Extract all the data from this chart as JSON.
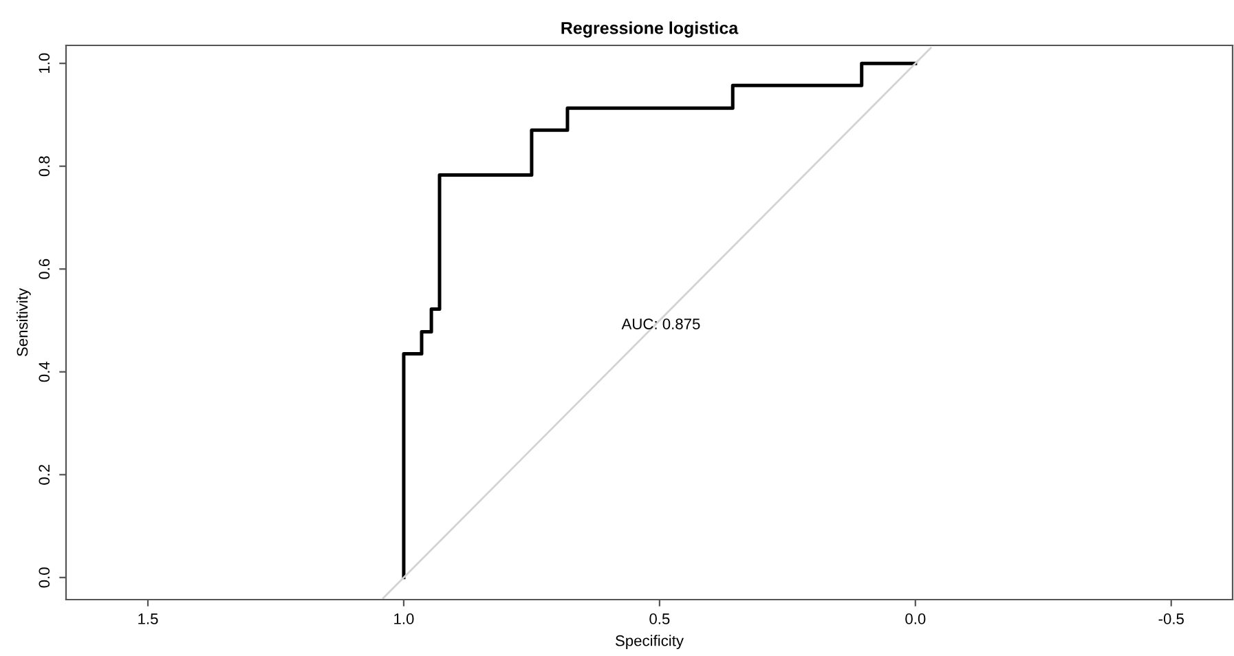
{
  "chart_data": {
    "type": "step",
    "title": "Regressione logistica",
    "xlabel": "Specificity",
    "ylabel": "Sensitivity",
    "x": [
      1,
      1,
      0.965,
      0.946,
      0.93,
      0.75,
      0.68,
      0.357,
      0.105,
      0
    ],
    "series": [
      {
        "color": "#000000",
        "values": [
          0,
          0.435,
          0.478,
          0.522,
          0.783,
          0.87,
          0.913,
          0.957,
          1.0,
          1.0
        ]
      },
      {
        "type": "line",
        "color": "#d3d3d3",
        "x": [
          1.04,
          -0.03
        ],
        "values": [
          -0.04,
          1.03
        ]
      }
    ],
    "xlim": [
      1.66,
      -0.62
    ],
    "ylim": [
      -0.043,
      1.035
    ],
    "xticks": [
      1.5,
      {
        "value": 1,
        "label": "1.0"
      },
      0.5,
      {
        "value": 0,
        "label": "0.0"
      },
      {
        "value": -0.5,
        "label": "-0.5"
      }
    ],
    "yticks": [
      {
        "value": 0,
        "label": "0.0"
      },
      0.2,
      0.4,
      0.6,
      0.8,
      {
        "value": 1,
        "label": "1.0"
      }
    ],
    "annotations": [
      "AUC: 0.875"
    ],
    "grid": false,
    "legend": false
  }
}
